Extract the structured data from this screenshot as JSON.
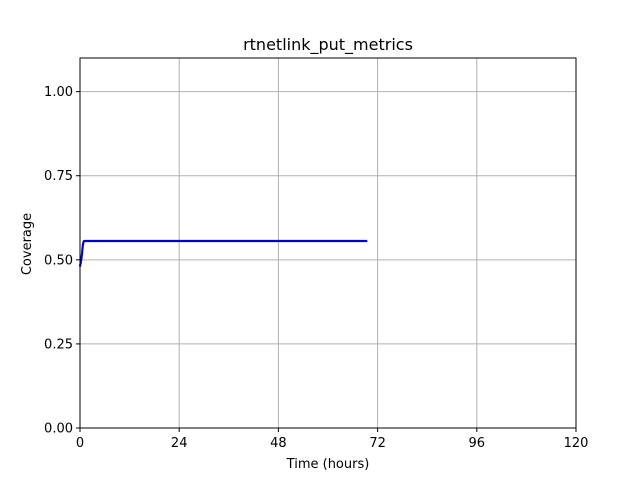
{
  "chart_data": {
    "type": "line",
    "title": "rtnetlink_put_metrics",
    "xlabel": "Time (hours)",
    "ylabel": "Coverage",
    "xlim": [
      0,
      120
    ],
    "ylim": [
      0,
      1.1
    ],
    "xticks": [
      0,
      24,
      48,
      72,
      96,
      120
    ],
    "xtick_labels": [
      "0",
      "24",
      "48",
      "72",
      "96",
      "120"
    ],
    "yticks": [
      0,
      0.25,
      0.5,
      0.75,
      1.0
    ],
    "ytick_labels": [
      "0.00",
      "0.25",
      "0.50",
      "0.75",
      "1.00"
    ],
    "grid": true,
    "series": [
      {
        "color": "#0000cc",
        "x": [
          0,
          0.3,
          0.5,
          0.7,
          0.9,
          1.0,
          10,
          30,
          50,
          69.5
        ],
        "y": [
          0.48,
          0.5,
          0.52,
          0.545,
          0.555,
          0.556,
          0.556,
          0.556,
          0.556,
          0.556
        ]
      }
    ]
  }
}
